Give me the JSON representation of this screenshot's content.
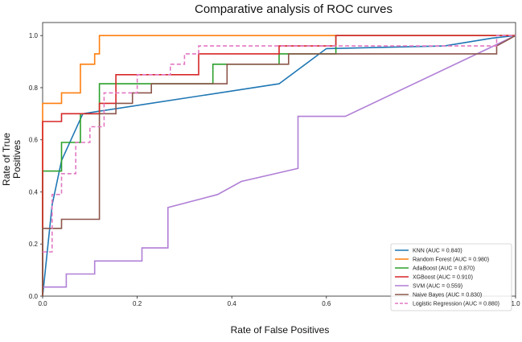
{
  "chart_data": {
    "type": "line",
    "title": "Comparative analysis of ROC curves",
    "xlabel": "Rate of False Positives",
    "ylabel": "Rate of True Positives",
    "xlim": [
      0,
      1
    ],
    "ylim": [
      0,
      1.05
    ],
    "xticks": [
      "0.0",
      "0.2",
      "0.4",
      "0.6",
      "0.8",
      "1.0"
    ],
    "yticks": [
      "0.0",
      "0.2",
      "0.4",
      "0.6",
      "0.8",
      "1.0"
    ],
    "grid": false,
    "legend_position": "lower-right",
    "series": [
      {
        "name": "KNN (AUC = 0.840)",
        "color": "#1f77b4",
        "dash": false,
        "x": [
          0,
          0.02,
          0.04,
          0.085,
          0.5,
          0.6,
          0.85,
          0.95,
          1.0
        ],
        "y": [
          0,
          0.35,
          0.52,
          0.7,
          0.815,
          0.95,
          0.96,
          0.99,
          1.0
        ]
      },
      {
        "name": "Random Forest (AUC = 0.980)",
        "color": "#ff7f0e",
        "dash": false,
        "x": [
          0,
          0,
          0.04,
          0.04,
          0.08,
          0.08,
          0.11,
          0.11,
          0.12,
          0.12,
          1.0
        ],
        "y": [
          0,
          0.74,
          0.74,
          0.78,
          0.78,
          0.89,
          0.89,
          0.93,
          0.93,
          1.0,
          1.0
        ]
      },
      {
        "name": "AdaBoost (AUC = 0.870)",
        "color": "#2ca02c",
        "dash": false,
        "x": [
          0,
          0,
          0.04,
          0.04,
          0.08,
          0.08,
          0.12,
          0.12,
          0.2,
          0.2,
          0.36,
          0.36,
          0.5,
          0.5,
          0.62,
          0.62,
          1.0
        ],
        "y": [
          0,
          0.48,
          0.48,
          0.59,
          0.59,
          0.7,
          0.7,
          0.815,
          0.815,
          0.815,
          0.815,
          0.89,
          0.89,
          0.93,
          0.93,
          1.0,
          1.0
        ]
      },
      {
        "name": "XGBoost (AUC = 0.910)",
        "color": "#d62728",
        "dash": false,
        "x": [
          0,
          0,
          0.04,
          0.04,
          0.12,
          0.12,
          0.155,
          0.155,
          0.33,
          0.33,
          0.5,
          0.5,
          0.62,
          0.62,
          1.0
        ],
        "y": [
          0,
          0.67,
          0.67,
          0.7,
          0.7,
          0.74,
          0.74,
          0.85,
          0.85,
          0.93,
          0.93,
          0.96,
          0.96,
          1.0,
          1.0
        ]
      },
      {
        "name": "SVM (AUC = 0.559)",
        "color": "#b07fd6",
        "dash": false,
        "x": [
          0,
          0.05,
          0.05,
          0.11,
          0.11,
          0.21,
          0.21,
          0.265,
          0.265,
          0.37,
          0.42,
          0.54,
          0.54,
          0.64,
          1.0
        ],
        "y": [
          0.035,
          0.035,
          0.085,
          0.085,
          0.135,
          0.135,
          0.185,
          0.185,
          0.34,
          0.39,
          0.44,
          0.49,
          0.69,
          0.69,
          1.0
        ]
      },
      {
        "name": "Naive Bayes (AUC = 0.830)",
        "color": "#8c564b",
        "dash": false,
        "x": [
          0,
          0,
          0.04,
          0.04,
          0.12,
          0.12,
          0.155,
          0.155,
          0.19,
          0.19,
          0.23,
          0.23,
          0.39,
          0.39,
          0.52,
          0.52,
          0.96,
          0.96,
          1.0
        ],
        "y": [
          0,
          0.26,
          0.26,
          0.295,
          0.295,
          0.7,
          0.7,
          0.74,
          0.74,
          0.78,
          0.78,
          0.815,
          0.815,
          0.89,
          0.89,
          0.93,
          0.93,
          0.96,
          1.0
        ]
      },
      {
        "name": "Logistic Regression (AUC = 0.880)",
        "color": "#e377c2",
        "dash": true,
        "x": [
          0,
          0.02,
          0.02,
          0.04,
          0.04,
          0.07,
          0.07,
          0.1,
          0.1,
          0.13,
          0.13,
          0.2,
          0.2,
          0.27,
          0.27,
          0.3,
          0.3,
          0.33,
          0.33,
          0.5,
          0.5,
          0.96,
          0.96,
          1.0
        ],
        "y": [
          0.17,
          0.17,
          0.39,
          0.39,
          0.47,
          0.47,
          0.59,
          0.59,
          0.65,
          0.65,
          0.78,
          0.78,
          0.85,
          0.85,
          0.89,
          0.89,
          0.93,
          0.93,
          0.96,
          0.96,
          0.96,
          0.96,
          1.0,
          1.0
        ]
      }
    ]
  }
}
